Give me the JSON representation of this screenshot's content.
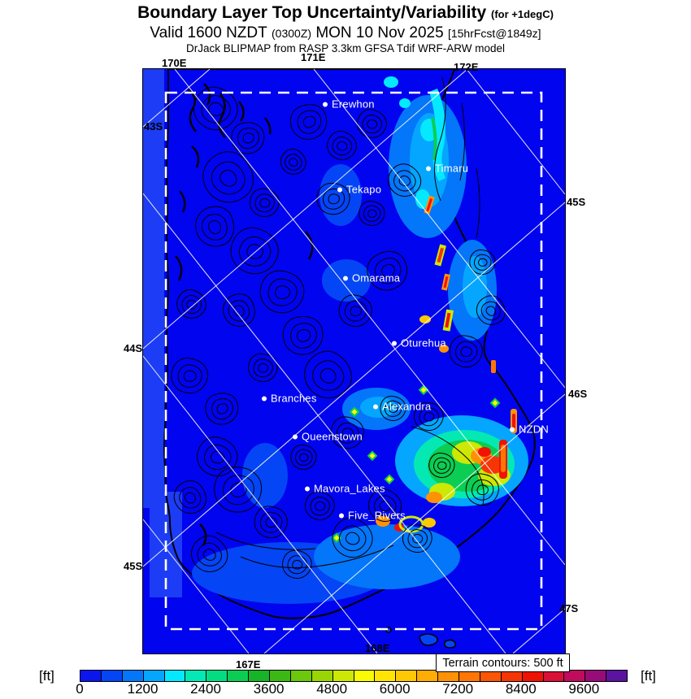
{
  "header": {
    "title": "Boundary Layer Top Uncertainty/Variability",
    "title_suffix": "(for +1degC)",
    "valid_prefix": "Valid 1600 NZDT",
    "valid_zulu": "(0300Z)",
    "valid_date": "MON 10 Nov 2025",
    "valid_fcst": "[15hrFcst@1849z]",
    "model_line": "DrJack BLIPMAP from RASP 3.3km GFSA Tdif WRF-ARW model"
  },
  "map": {
    "terrain_note": "Terrain contours: 500 ft",
    "grid_labels": [
      {
        "text": "170E"
      },
      {
        "text": "171E"
      },
      {
        "text": "172E"
      },
      {
        "text": "43S"
      },
      {
        "text": "44S"
      },
      {
        "text": "45S"
      },
      {
        "text": "45S"
      },
      {
        "text": "46S"
      },
      {
        "text": "47S"
      },
      {
        "text": "167E"
      },
      {
        "text": "168E"
      }
    ],
    "cities": [
      {
        "name": "Erewhon"
      },
      {
        "name": "Timaru"
      },
      {
        "name": "Tekapo"
      },
      {
        "name": "Omarama"
      },
      {
        "name": "Oturehua"
      },
      {
        "name": "Branches"
      },
      {
        "name": "Alexandra"
      },
      {
        "name": "Queenstown"
      },
      {
        "name": "NZDN"
      },
      {
        "name": "Mavora_Lakes"
      },
      {
        "name": "Five_Rivers"
      }
    ],
    "ocean_color": "#0104ef",
    "land_color": "#0838f6"
  },
  "colorbar": {
    "unit_left": "[ft]",
    "unit_right": "[ft]",
    "min": 0,
    "step_per_segment": 400,
    "ticks": [
      "0",
      "1200",
      "2400",
      "3600",
      "4800",
      "6000",
      "7200",
      "8400",
      "9600"
    ],
    "segment_colors": [
      "#0b16ee",
      "#0445f5",
      "#0476fa",
      "#04a6ff",
      "#04e9ff",
      "#04e9b4",
      "#04dc82",
      "#0ccd53",
      "#16b426",
      "#3cb814",
      "#6cc80c",
      "#9ad504",
      "#cce804",
      "#f8fb04",
      "#ffe404",
      "#ffc804",
      "#ffac04",
      "#ff9204",
      "#ff7604",
      "#fa5604",
      "#f53604",
      "#f01204",
      "#da1038",
      "#c00c5c",
      "#980c78",
      "#5a14a0"
    ]
  }
}
